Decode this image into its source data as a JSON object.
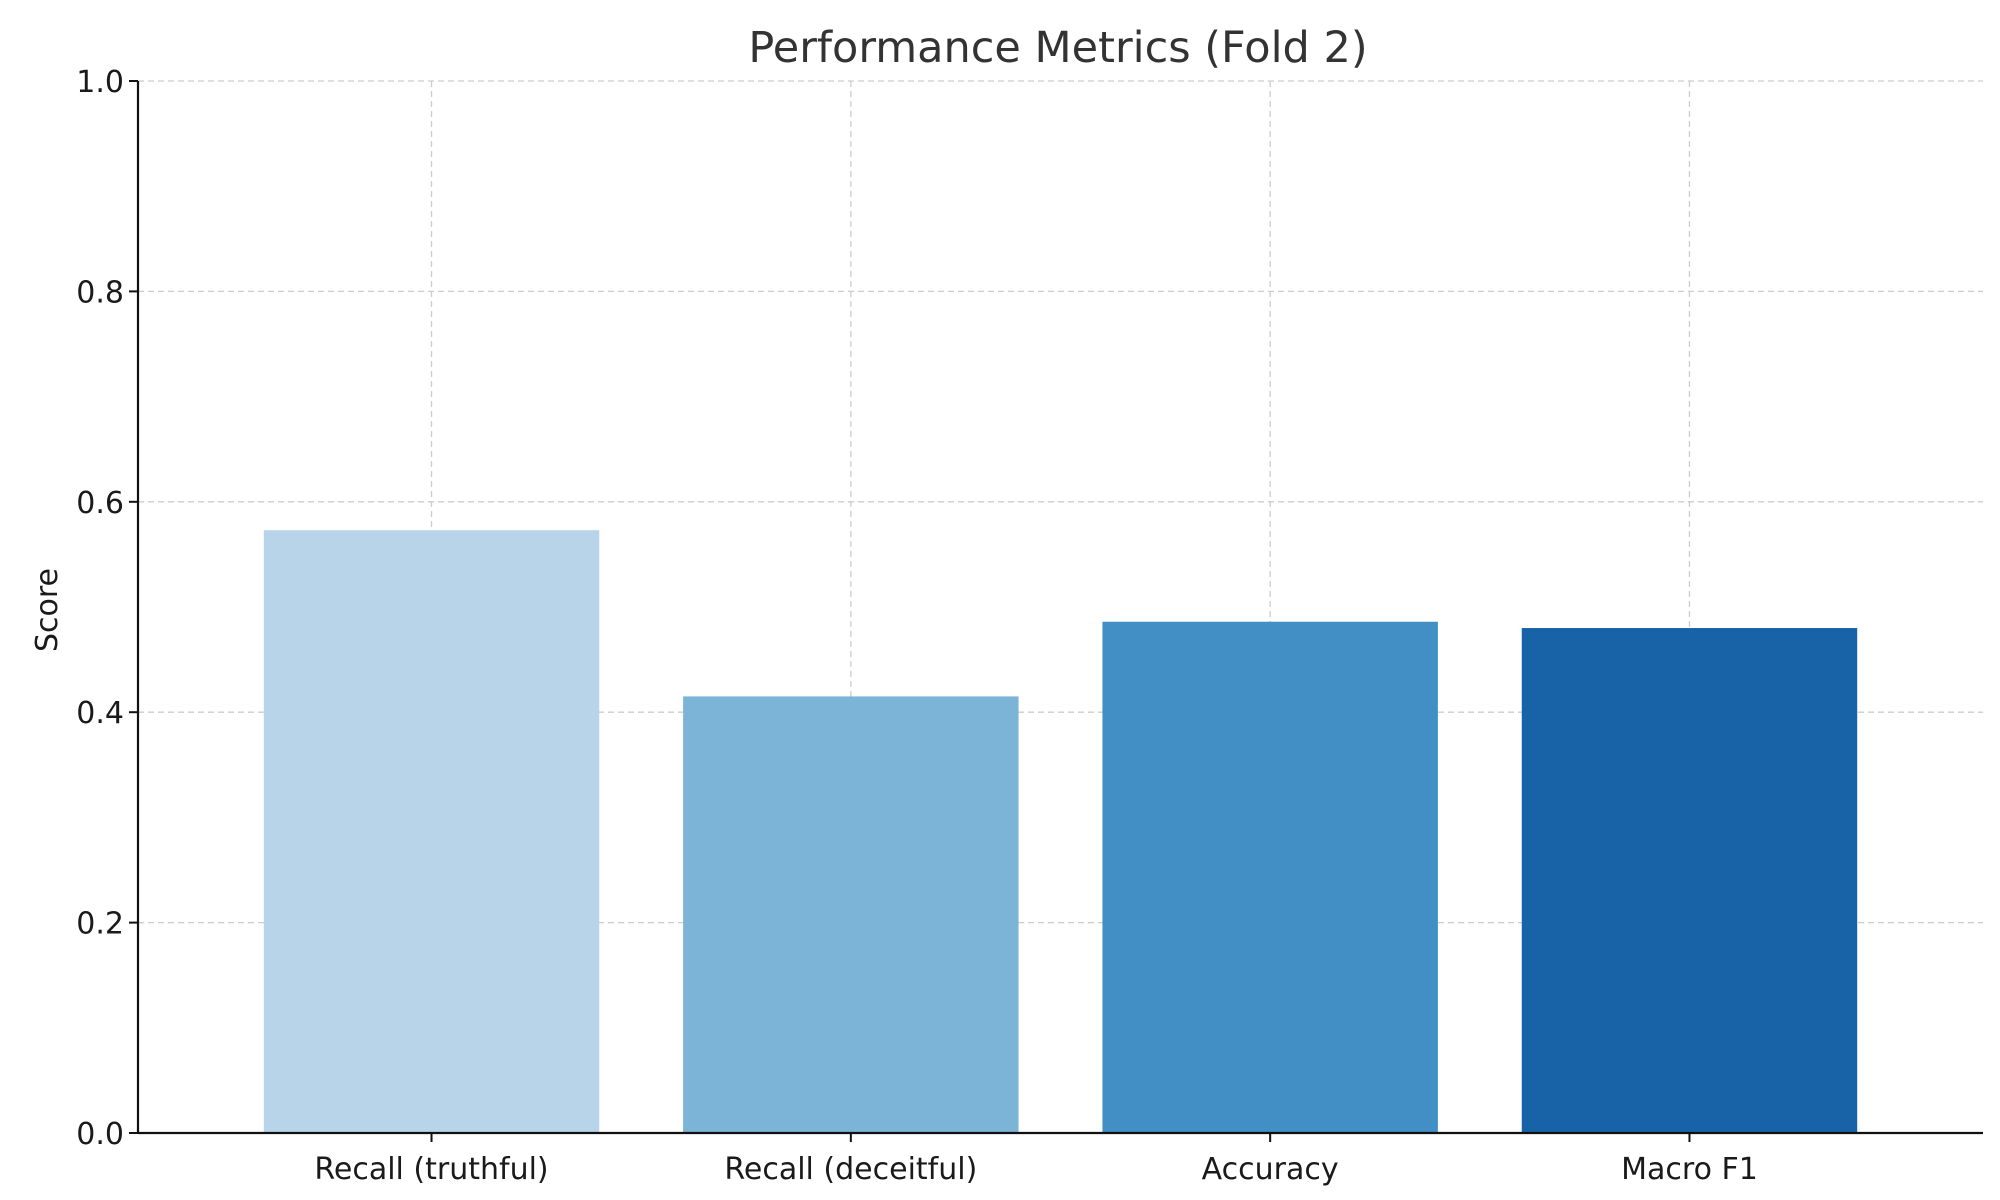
{
  "chart_data": {
    "type": "bar",
    "title": "Performance Metrics (Fold 2)",
    "xlabel": "",
    "ylabel": "Score",
    "categories": [
      "Recall (truthful)",
      "Recall (deceitful)",
      "Accuracy",
      "Macro F1"
    ],
    "values": [
      0.573,
      0.415,
      0.486,
      0.48
    ],
    "colors": [
      "#b8d4e9",
      "#7cb4d8",
      "#428fc6",
      "#1863a8"
    ],
    "ylim": [
      0,
      1.0
    ],
    "yticks": [
      "0.0",
      "0.2",
      "0.4",
      "0.6",
      "0.8",
      "1.0"
    ],
    "grid": true,
    "legend": false
  }
}
